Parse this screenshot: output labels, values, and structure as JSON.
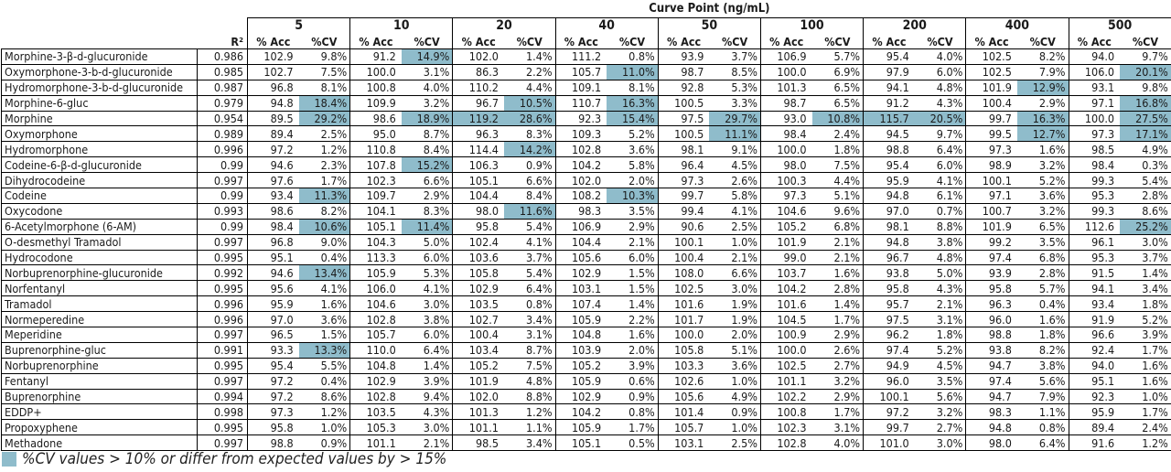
{
  "header": {
    "curve_point_label": "Curve Point (ng/mL)",
    "r2_label": "R²",
    "acc_label": "% Acc",
    "cv_label": "%CV"
  },
  "curve_points": [
    "5",
    "10",
    "20",
    "40",
    "50",
    "100",
    "200",
    "400",
    "500"
  ],
  "colors": {
    "flag": "#8fbccb",
    "border": "#000000"
  },
  "rows": [
    {
      "name": "Morphine-3-β-d-glucuronide",
      "r2": "0.986",
      "cells": [
        [
          "102.9",
          "9.8%",
          0
        ],
        [
          "91.2",
          "14.9%",
          1
        ],
        [
          "102.0",
          "1.4%",
          0
        ],
        [
          "111.2",
          "0.8%",
          0
        ],
        [
          "93.9",
          "3.7%",
          0
        ],
        [
          "106.9",
          "5.7%",
          0
        ],
        [
          "95.4",
          "4.0%",
          0
        ],
        [
          "102.5",
          "8.2%",
          0
        ],
        [
          "94.0",
          "9.7%",
          0
        ]
      ]
    },
    {
      "name": "Oxymorphone-3-b-d-glucuronide",
      "r2": "0.985",
      "cells": [
        [
          "102.7",
          "7.5%",
          0
        ],
        [
          "100.0",
          "3.1%",
          0
        ],
        [
          "86.3",
          "2.2%",
          0
        ],
        [
          "105.7",
          "11.0%",
          1
        ],
        [
          "98.7",
          "8.5%",
          0
        ],
        [
          "100.0",
          "6.9%",
          0
        ],
        [
          "97.9",
          "6.0%",
          0
        ],
        [
          "102.5",
          "7.9%",
          0
        ],
        [
          "106.0",
          "20.1%",
          1
        ]
      ]
    },
    {
      "name": "Hydromorphone-3-b-d-glucuronide",
      "r2": "0.987",
      "cells": [
        [
          "96.8",
          "8.1%",
          0
        ],
        [
          "100.8",
          "4.0%",
          0
        ],
        [
          "110.2",
          "4.4%",
          0
        ],
        [
          "109.1",
          "8.1%",
          0
        ],
        [
          "92.8",
          "5.3%",
          0
        ],
        [
          "101.3",
          "6.5%",
          0
        ],
        [
          "94.1",
          "4.8%",
          0
        ],
        [
          "101.9",
          "12.9%",
          1
        ],
        [
          "93.1",
          "9.8%",
          0
        ]
      ]
    },
    {
      "name": "Morphine-6-gluc",
      "r2": "0.979",
      "cells": [
        [
          "94.8",
          "18.4%",
          1
        ],
        [
          "109.9",
          "3.2%",
          0
        ],
        [
          "96.7",
          "10.5%",
          1
        ],
        [
          "110.7",
          "16.3%",
          1
        ],
        [
          "100.5",
          "3.3%",
          0
        ],
        [
          "98.7",
          "6.5%",
          0
        ],
        [
          "91.2",
          "4.3%",
          0
        ],
        [
          "100.4",
          "2.9%",
          0
        ],
        [
          "97.1",
          "16.8%",
          1
        ]
      ]
    },
    {
      "name": "Morphine",
      "r2": "0.954",
      "cells": [
        [
          "89.5",
          "29.2%",
          1
        ],
        [
          "98.6",
          "18.9%",
          1
        ],
        [
          "119.2",
          "28.6%",
          3
        ],
        [
          "92.3",
          "15.4%",
          1
        ],
        [
          "97.5",
          "29.7%",
          1
        ],
        [
          "93.0",
          "10.8%",
          1
        ],
        [
          "115.7",
          "20.5%",
          3
        ],
        [
          "99.7",
          "16.3%",
          1
        ],
        [
          "100.0",
          "27.5%",
          1
        ]
      ]
    },
    {
      "name": "Oxymorphone",
      "r2": "0.989",
      "cells": [
        [
          "89.4",
          "2.5%",
          0
        ],
        [
          "95.0",
          "8.7%",
          0
        ],
        [
          "96.3",
          "8.3%",
          0
        ],
        [
          "109.3",
          "5.2%",
          0
        ],
        [
          "100.5",
          "11.1%",
          1
        ],
        [
          "98.4",
          "2.4%",
          0
        ],
        [
          "94.5",
          "9.7%",
          0
        ],
        [
          "99.5",
          "12.7%",
          1
        ],
        [
          "97.3",
          "17.1%",
          1
        ]
      ]
    },
    {
      "name": "Hydromorphone",
      "r2": "0.996",
      "cells": [
        [
          "97.2",
          "1.2%",
          0
        ],
        [
          "110.8",
          "8.4%",
          0
        ],
        [
          "114.4",
          "14.2%",
          1
        ],
        [
          "102.8",
          "3.6%",
          0
        ],
        [
          "98.1",
          "9.1%",
          0
        ],
        [
          "100.0",
          "1.8%",
          0
        ],
        [
          "98.8",
          "6.4%",
          0
        ],
        [
          "97.3",
          "1.6%",
          0
        ],
        [
          "98.5",
          "4.9%",
          0
        ]
      ]
    },
    {
      "name": "Codeine-6-β-d-glucuronide",
      "r2": "0.99",
      "cells": [
        [
          "94.6",
          "2.3%",
          0
        ],
        [
          "107.8",
          "15.2%",
          1
        ],
        [
          "106.3",
          "0.9%",
          0
        ],
        [
          "104.2",
          "5.8%",
          0
        ],
        [
          "96.4",
          "4.5%",
          0
        ],
        [
          "98.0",
          "7.5%",
          0
        ],
        [
          "95.4",
          "6.0%",
          0
        ],
        [
          "98.9",
          "3.2%",
          0
        ],
        [
          "98.4",
          "0.3%",
          0
        ]
      ]
    },
    {
      "name": "Dihydrocodeine",
      "r2": "0.997",
      "cells": [
        [
          "97.6",
          "1.7%",
          0
        ],
        [
          "102.3",
          "6.6%",
          0
        ],
        [
          "105.1",
          "6.6%",
          0
        ],
        [
          "102.0",
          "2.0%",
          0
        ],
        [
          "97.3",
          "2.6%",
          0
        ],
        [
          "100.3",
          "4.4%",
          0
        ],
        [
          "95.9",
          "4.1%",
          0
        ],
        [
          "100.1",
          "5.2%",
          0
        ],
        [
          "99.3",
          "5.4%",
          0
        ]
      ]
    },
    {
      "name": "Codeine",
      "r2": "0.99",
      "cells": [
        [
          "93.4",
          "11.3%",
          1
        ],
        [
          "109.7",
          "2.9%",
          0
        ],
        [
          "104.4",
          "8.4%",
          0
        ],
        [
          "108.2",
          "10.3%",
          1
        ],
        [
          "99.7",
          "5.8%",
          0
        ],
        [
          "97.3",
          "5.1%",
          0
        ],
        [
          "94.8",
          "6.1%",
          0
        ],
        [
          "97.1",
          "3.6%",
          0
        ],
        [
          "95.3",
          "2.8%",
          0
        ]
      ]
    },
    {
      "name": "Oxycodone",
      "r2": "0.993",
      "cells": [
        [
          "98.6",
          "8.2%",
          0
        ],
        [
          "104.1",
          "8.3%",
          0
        ],
        [
          "98.0",
          "11.6%",
          1
        ],
        [
          "98.3",
          "3.5%",
          0
        ],
        [
          "99.4",
          "4.1%",
          0
        ],
        [
          "104.6",
          "9.6%",
          0
        ],
        [
          "97.0",
          "0.7%",
          0
        ],
        [
          "100.7",
          "3.2%",
          0
        ],
        [
          "99.3",
          "8.6%",
          0
        ]
      ]
    },
    {
      "name": "6-Acetylmorphone (6-AM)",
      "r2": "0.99",
      "cells": [
        [
          "98.4",
          "10.6%",
          1
        ],
        [
          "105.1",
          "11.4%",
          1
        ],
        [
          "95.8",
          "5.4%",
          0
        ],
        [
          "106.9",
          "2.9%",
          0
        ],
        [
          "90.6",
          "2.5%",
          0
        ],
        [
          "105.2",
          "6.8%",
          0
        ],
        [
          "98.1",
          "8.8%",
          0
        ],
        [
          "101.9",
          "6.5%",
          0
        ],
        [
          "112.6",
          "25.2%",
          1
        ]
      ]
    },
    {
      "name": "O-desmethyl Tramadol",
      "r2": "0.997",
      "cells": [
        [
          "96.8",
          "9.0%",
          0
        ],
        [
          "104.3",
          "5.0%",
          0
        ],
        [
          "102.4",
          "4.1%",
          0
        ],
        [
          "104.4",
          "2.1%",
          0
        ],
        [
          "100.1",
          "1.0%",
          0
        ],
        [
          "101.9",
          "2.1%",
          0
        ],
        [
          "94.8",
          "3.8%",
          0
        ],
        [
          "99.2",
          "3.5%",
          0
        ],
        [
          "96.1",
          "3.0%",
          0
        ]
      ]
    },
    {
      "name": "Hydrocodone",
      "r2": "0.995",
      "cells": [
        [
          "95.1",
          "0.4%",
          0
        ],
        [
          "113.3",
          "6.0%",
          0
        ],
        [
          "103.6",
          "3.7%",
          0
        ],
        [
          "105.6",
          "6.0%",
          0
        ],
        [
          "100.4",
          "2.1%",
          0
        ],
        [
          "99.0",
          "2.1%",
          0
        ],
        [
          "96.7",
          "4.8%",
          0
        ],
        [
          "97.4",
          "6.8%",
          0
        ],
        [
          "95.3",
          "3.7%",
          0
        ]
      ]
    },
    {
      "name": "Norbuprenorphine-glucuronide",
      "r2": "0.992",
      "cells": [
        [
          "94.6",
          "13.4%",
          1
        ],
        [
          "105.9",
          "5.3%",
          0
        ],
        [
          "105.8",
          "5.4%",
          0
        ],
        [
          "102.9",
          "1.5%",
          0
        ],
        [
          "108.0",
          "6.6%",
          0
        ],
        [
          "103.7",
          "1.6%",
          0
        ],
        [
          "93.8",
          "5.0%",
          0
        ],
        [
          "93.9",
          "2.8%",
          0
        ],
        [
          "91.5",
          "1.4%",
          0
        ]
      ]
    },
    {
      "name": "Norfentanyl",
      "r2": "0.995",
      "cells": [
        [
          "95.6",
          "4.1%",
          0
        ],
        [
          "106.0",
          "4.1%",
          0
        ],
        [
          "102.9",
          "6.4%",
          0
        ],
        [
          "103.1",
          "1.5%",
          0
        ],
        [
          "102.5",
          "3.0%",
          0
        ],
        [
          "104.2",
          "2.8%",
          0
        ],
        [
          "95.8",
          "4.3%",
          0
        ],
        [
          "95.8",
          "5.7%",
          0
        ],
        [
          "94.1",
          "3.4%",
          0
        ]
      ]
    },
    {
      "name": "Tramadol",
      "r2": "0.996",
      "cells": [
        [
          "95.9",
          "1.6%",
          0
        ],
        [
          "104.6",
          "3.0%",
          0
        ],
        [
          "103.5",
          "0.8%",
          0
        ],
        [
          "107.4",
          "1.4%",
          0
        ],
        [
          "101.6",
          "1.9%",
          0
        ],
        [
          "101.6",
          "1.4%",
          0
        ],
        [
          "95.7",
          "2.1%",
          0
        ],
        [
          "96.3",
          "0.4%",
          0
        ],
        [
          "93.4",
          "1.8%",
          0
        ]
      ]
    },
    {
      "name": "Normeperedine",
      "r2": "0.996",
      "cells": [
        [
          "97.0",
          "3.6%",
          0
        ],
        [
          "102.8",
          "3.8%",
          0
        ],
        [
          "102.7",
          "3.4%",
          0
        ],
        [
          "105.9",
          "2.2%",
          0
        ],
        [
          "101.7",
          "1.9%",
          0
        ],
        [
          "104.5",
          "1.7%",
          0
        ],
        [
          "97.5",
          "3.1%",
          0
        ],
        [
          "96.0",
          "1.6%",
          0
        ],
        [
          "91.9",
          "5.2%",
          0
        ]
      ]
    },
    {
      "name": "Meperidine",
      "r2": "0.997",
      "cells": [
        [
          "96.5",
          "1.5%",
          0
        ],
        [
          "105.7",
          "6.0%",
          0
        ],
        [
          "100.4",
          "3.1%",
          0
        ],
        [
          "104.8",
          "1.6%",
          0
        ],
        [
          "100.0",
          "2.0%",
          0
        ],
        [
          "100.9",
          "2.9%",
          0
        ],
        [
          "96.2",
          "1.8%",
          0
        ],
        [
          "98.8",
          "1.8%",
          0
        ],
        [
          "96.6",
          "3.9%",
          0
        ]
      ]
    },
    {
      "name": "Buprenorphine-gluc",
      "r2": "0.991",
      "cells": [
        [
          "93.3",
          "13.3%",
          1
        ],
        [
          "110.0",
          "6.4%",
          0
        ],
        [
          "103.4",
          "8.7%",
          0
        ],
        [
          "103.9",
          "2.0%",
          0
        ],
        [
          "105.8",
          "5.1%",
          0
        ],
        [
          "100.0",
          "2.6%",
          0
        ],
        [
          "97.4",
          "5.2%",
          0
        ],
        [
          "93.8",
          "8.2%",
          0
        ],
        [
          "92.4",
          "1.7%",
          0
        ]
      ]
    },
    {
      "name": "Norbuprenorphine",
      "r2": "0.995",
      "cells": [
        [
          "95.4",
          "5.5%",
          0
        ],
        [
          "104.8",
          "1.4%",
          0
        ],
        [
          "105.2",
          "7.5%",
          0
        ],
        [
          "105.2",
          "3.9%",
          0
        ],
        [
          "103.3",
          "3.6%",
          0
        ],
        [
          "102.5",
          "2.7%",
          0
        ],
        [
          "94.9",
          "4.5%",
          0
        ],
        [
          "94.7",
          "3.8%",
          0
        ],
        [
          "94.0",
          "1.6%",
          0
        ]
      ]
    },
    {
      "name": "Fentanyl",
      "r2": "0.997",
      "cells": [
        [
          "97.2",
          "0.4%",
          0
        ],
        [
          "102.9",
          "3.9%",
          0
        ],
        [
          "101.9",
          "4.8%",
          0
        ],
        [
          "105.9",
          "0.6%",
          0
        ],
        [
          "102.6",
          "1.0%",
          0
        ],
        [
          "101.1",
          "3.2%",
          0
        ],
        [
          "96.0",
          "3.5%",
          0
        ],
        [
          "97.4",
          "5.6%",
          0
        ],
        [
          "95.1",
          "1.6%",
          0
        ]
      ]
    },
    {
      "name": "Buprenorphine",
      "r2": "0.994",
      "cells": [
        [
          "97.2",
          "8.6%",
          0
        ],
        [
          "102.8",
          "9.4%",
          0
        ],
        [
          "102.0",
          "8.8%",
          0
        ],
        [
          "102.9",
          "0.9%",
          0
        ],
        [
          "105.6",
          "4.9%",
          0
        ],
        [
          "102.2",
          "2.9%",
          0
        ],
        [
          "100.1",
          "5.6%",
          0
        ],
        [
          "94.7",
          "7.9%",
          0
        ],
        [
          "92.3",
          "1.0%",
          0
        ]
      ]
    },
    {
      "name": "EDDP+",
      "r2": "0.998",
      "cells": [
        [
          "97.3",
          "1.2%",
          0
        ],
        [
          "103.5",
          "4.3%",
          0
        ],
        [
          "101.3",
          "1.2%",
          0
        ],
        [
          "104.2",
          "0.8%",
          0
        ],
        [
          "101.4",
          "0.9%",
          0
        ],
        [
          "100.8",
          "1.7%",
          0
        ],
        [
          "97.2",
          "3.2%",
          0
        ],
        [
          "98.3",
          "1.1%",
          0
        ],
        [
          "95.9",
          "1.7%",
          0
        ]
      ]
    },
    {
      "name": "Propoxyphene",
      "r2": "0.995",
      "cells": [
        [
          "95.8",
          "1.0%",
          0
        ],
        [
          "105.3",
          "3.0%",
          0
        ],
        [
          "101.1",
          "1.1%",
          0
        ],
        [
          "105.9",
          "1.7%",
          0
        ],
        [
          "105.7",
          "1.0%",
          0
        ],
        [
          "102.3",
          "3.1%",
          0
        ],
        [
          "99.7",
          "2.7%",
          0
        ],
        [
          "94.8",
          "0.8%",
          0
        ],
        [
          "89.4",
          "2.4%",
          0
        ]
      ]
    },
    {
      "name": "Methadone",
      "r2": "0.997",
      "cells": [
        [
          "98.8",
          "0.9%",
          0
        ],
        [
          "101.1",
          "2.1%",
          0
        ],
        [
          "98.5",
          "3.4%",
          0
        ],
        [
          "105.1",
          "0.5%",
          0
        ],
        [
          "103.1",
          "2.5%",
          0
        ],
        [
          "102.8",
          "4.0%",
          0
        ],
        [
          "101.0",
          "3.0%",
          0
        ],
        [
          "98.0",
          "6.4%",
          0
        ],
        [
          "91.6",
          "1.2%",
          0
        ]
      ]
    }
  ],
  "legend": {
    "text": "%CV values > 10% or differ from expected values by > 15%"
  }
}
